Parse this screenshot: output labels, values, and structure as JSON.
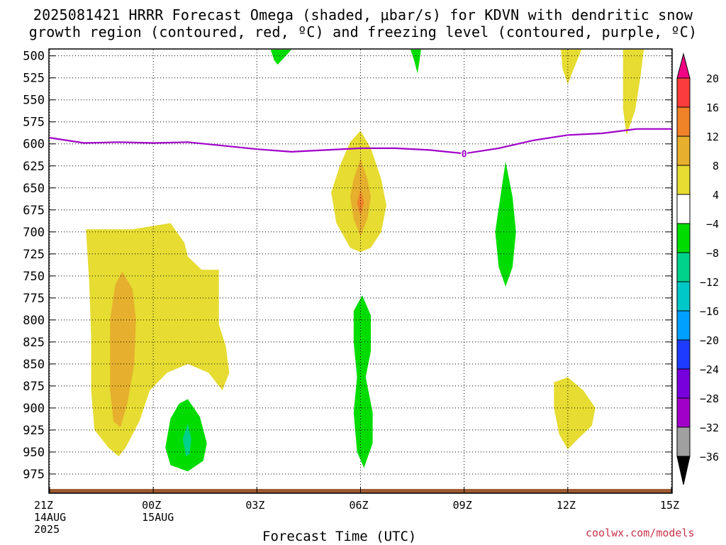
{
  "title_line1": "2025081421 HRRR Forecast Omega (shaded, μbar/s) for KDVN with dendritic snow",
  "title_line2": "growth region (contoured, red, ºC) and freezing level (contoured, purple, ºC)",
  "credit": "coolwx.com/models",
  "chart_data": {
    "type": "heatmap",
    "title": "2025081421 HRRR Forecast Omega (shaded, μbar/s) for KDVN with dendritic snow growth region (contoured, red, ºC) and freezing level (contoured, purple, ºC)",
    "xlabel": "Forecast Time (UTC)",
    "ylabel": "",
    "x_range_hours": [
      0,
      18
    ],
    "y_range_hPa": [
      493,
      996
    ],
    "y_ticks": [
      500,
      525,
      550,
      575,
      600,
      625,
      650,
      675,
      700,
      725,
      750,
      775,
      800,
      825,
      850,
      875,
      900,
      925,
      950,
      975
    ],
    "x_ticks": [
      {
        "h": 0,
        "lines": [
          "21Z",
          "14AUG",
          "2025"
        ]
      },
      {
        "h": 3,
        "lines": [
          "00Z",
          "15AUG"
        ]
      },
      {
        "h": 6,
        "lines": [
          "03Z"
        ]
      },
      {
        "h": 9,
        "lines": [
          "06Z"
        ]
      },
      {
        "h": 12,
        "lines": [
          "09Z"
        ]
      },
      {
        "h": 15,
        "lines": [
          "12Z"
        ]
      },
      {
        "h": 18,
        "lines": [
          "15Z"
        ]
      }
    ],
    "grid": true,
    "colorbar": {
      "position": "right",
      "levels": [
        -36,
        -32,
        -28,
        -24,
        -20,
        -16,
        -12,
        -8,
        -4,
        4,
        8,
        12,
        16,
        20
      ],
      "colors": [
        "#000000",
        "#a0a0a0",
        "#a000c8",
        "#7800dc",
        "#1e3cff",
        "#00a0ff",
        "#00c8c8",
        "#00d28c",
        "#00dc00",
        "#ffffff",
        "#e6dc32",
        "#e6af2d",
        "#f08228",
        "#fa3c3c",
        "#f00082"
      ]
    },
    "freezing_level": {
      "label": "0",
      "color": "#a000c8",
      "points": [
        [
          0,
          593
        ],
        [
          1,
          599
        ],
        [
          2,
          598
        ],
        [
          3,
          599
        ],
        [
          4,
          598
        ],
        [
          5,
          602
        ],
        [
          6,
          606
        ],
        [
          7,
          609
        ],
        [
          8,
          607
        ],
        [
          9,
          605
        ],
        [
          10,
          605
        ],
        [
          11,
          607
        ],
        [
          12,
          611
        ],
        [
          13,
          605
        ],
        [
          14,
          596
        ],
        [
          15,
          590
        ],
        [
          16,
          588
        ],
        [
          17,
          583
        ],
        [
          18,
          583
        ]
      ]
    },
    "omega_regions": [
      {
        "color": "#e6dc32",
        "value": 4,
        "points": [
          [
            1.05,
            697
          ],
          [
            2.4,
            697
          ],
          [
            3.5,
            690
          ],
          [
            3.9,
            712
          ],
          [
            4.0,
            728
          ],
          [
            4.4,
            743
          ],
          [
            4.9,
            743
          ],
          [
            4.9,
            805
          ],
          [
            5.1,
            830
          ],
          [
            5.2,
            860
          ],
          [
            5.0,
            880
          ],
          [
            4.6,
            860
          ],
          [
            4.0,
            850
          ],
          [
            3.4,
            860
          ],
          [
            2.9,
            880
          ],
          [
            2.6,
            915
          ],
          [
            2.2,
            945
          ],
          [
            2.0,
            955
          ],
          [
            1.7,
            945
          ],
          [
            1.3,
            925
          ],
          [
            1.2,
            880
          ],
          [
            1.2,
            820
          ],
          [
            1.15,
            760
          ]
        ]
      },
      {
        "color": "#e6af2d",
        "value": 8,
        "points": [
          [
            2.1,
            745
          ],
          [
            2.4,
            765
          ],
          [
            2.5,
            800
          ],
          [
            2.45,
            850
          ],
          [
            2.25,
            895
          ],
          [
            2.05,
            922
          ],
          [
            1.85,
            915
          ],
          [
            1.75,
            880
          ],
          [
            1.75,
            800
          ],
          [
            1.9,
            760
          ]
        ]
      },
      {
        "color": "#e6dc32",
        "value": 4,
        "points": [
          [
            9.0,
            585
          ],
          [
            9.3,
            605
          ],
          [
            9.6,
            640
          ],
          [
            9.75,
            670
          ],
          [
            9.6,
            700
          ],
          [
            9.3,
            718
          ],
          [
            9.0,
            723
          ],
          [
            8.7,
            718
          ],
          [
            8.3,
            690
          ],
          [
            8.15,
            655
          ],
          [
            8.4,
            625
          ],
          [
            8.7,
            598
          ]
        ]
      },
      {
        "color": "#e6af2d",
        "value": 8,
        "points": [
          [
            9.0,
            617
          ],
          [
            9.2,
            640
          ],
          [
            9.3,
            660
          ],
          [
            9.2,
            685
          ],
          [
            9.0,
            705
          ],
          [
            8.8,
            685
          ],
          [
            8.7,
            660
          ],
          [
            8.8,
            640
          ]
        ]
      },
      {
        "color": "#f08228",
        "value": 12,
        "points": [
          [
            9.0,
            652
          ],
          [
            9.1,
            667
          ],
          [
            9.0,
            682
          ],
          [
            8.9,
            667
          ]
        ]
      },
      {
        "color": "#e6dc32",
        "value": 4,
        "points": [
          [
            14.8,
            493
          ],
          [
            15.4,
            493
          ],
          [
            15.2,
            512
          ],
          [
            15.0,
            532
          ],
          [
            14.85,
            515
          ]
        ]
      },
      {
        "color": "#e6dc32",
        "value": 4,
        "points": [
          [
            16.6,
            493
          ],
          [
            17.2,
            493
          ],
          [
            17.1,
            525
          ],
          [
            16.95,
            562
          ],
          [
            16.7,
            590
          ],
          [
            16.6,
            560
          ],
          [
            16.6,
            520
          ]
        ]
      },
      {
        "color": "#e6dc32",
        "value": 4,
        "points": [
          [
            14.6,
            871
          ],
          [
            15.0,
            865
          ],
          [
            15.45,
            880
          ],
          [
            15.8,
            900
          ],
          [
            15.7,
            920
          ],
          [
            15.3,
            935
          ],
          [
            15.0,
            947
          ],
          [
            14.75,
            930
          ],
          [
            14.6,
            900
          ]
        ]
      },
      {
        "color": "#00dc00",
        "value": -4,
        "points": [
          [
            6.4,
            493
          ],
          [
            7.0,
            493
          ],
          [
            6.6,
            510
          ],
          [
            6.5,
            505
          ]
        ]
      },
      {
        "color": "#00dc00",
        "value": -4,
        "points": [
          [
            10.45,
            493
          ],
          [
            10.75,
            493
          ],
          [
            10.7,
            508
          ],
          [
            10.65,
            520
          ],
          [
            10.55,
            505
          ]
        ]
      },
      {
        "color": "#00dc00",
        "value": -4,
        "points": [
          [
            13.2,
            620
          ],
          [
            13.4,
            660
          ],
          [
            13.5,
            700
          ],
          [
            13.4,
            740
          ],
          [
            13.2,
            762
          ],
          [
            13.0,
            740
          ],
          [
            12.9,
            700
          ],
          [
            13.05,
            660
          ]
        ]
      },
      {
        "color": "#00dc00",
        "value": -4,
        "points": [
          [
            9.05,
            772
          ],
          [
            9.3,
            795
          ],
          [
            9.3,
            835
          ],
          [
            9.15,
            865
          ],
          [
            9.35,
            905
          ],
          [
            9.35,
            940
          ],
          [
            9.1,
            968
          ],
          [
            8.9,
            950
          ],
          [
            8.8,
            905
          ],
          [
            8.9,
            865
          ],
          [
            8.8,
            825
          ],
          [
            8.8,
            790
          ]
        ]
      },
      {
        "color": "#00dc00",
        "value": -4,
        "points": [
          [
            4.0,
            890
          ],
          [
            4.35,
            910
          ],
          [
            4.55,
            940
          ],
          [
            4.45,
            960
          ],
          [
            4.0,
            972
          ],
          [
            3.5,
            965
          ],
          [
            3.35,
            945
          ],
          [
            3.5,
            912
          ],
          [
            3.75,
            895
          ]
        ]
      },
      {
        "color": "#00d28c",
        "value": -8,
        "points": [
          [
            4.0,
            918
          ],
          [
            4.1,
            935
          ],
          [
            4.05,
            952
          ],
          [
            3.95,
            955
          ],
          [
            3.85,
            935
          ]
        ]
      }
    ],
    "surface": {
      "color": "#9c5a30",
      "top_hPa": 992
    }
  }
}
